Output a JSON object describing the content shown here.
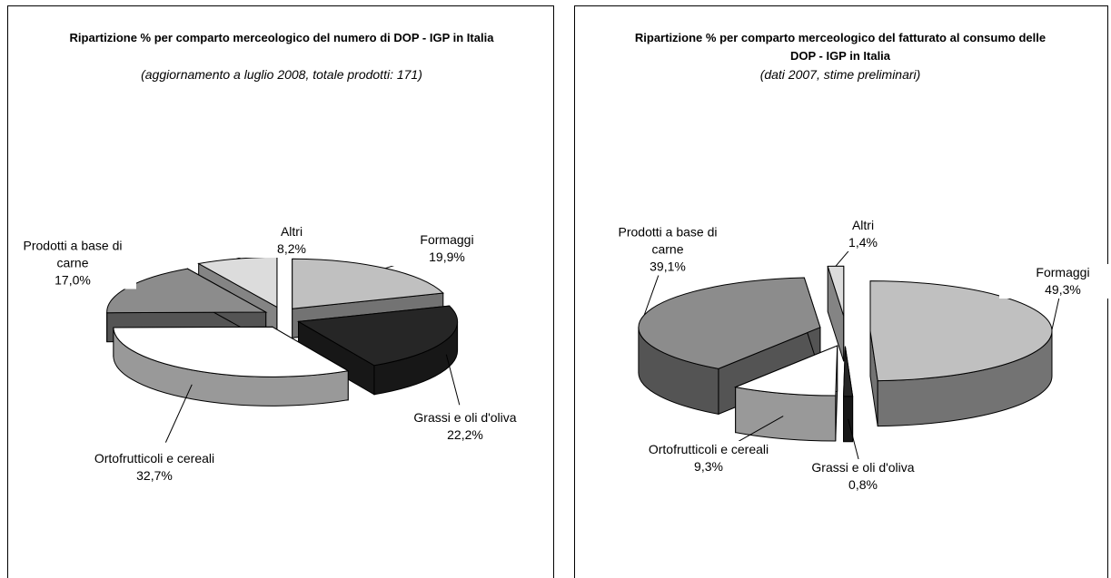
{
  "chart_data": [
    {
      "type": "pie",
      "title": "Ripartizione % per comparto merceologico del numero di DOP - IGP in Italia",
      "subtitle": "(aggiornamento a luglio 2008, totale prodotti: 171)",
      "categories": [
        "Formaggi",
        "Grassi e oli d'oliva",
        "Ortofrutticoli e cereali",
        "Prodotti a base di carne",
        "Altri"
      ],
      "values": [
        19.9,
        22.2,
        32.7,
        17.0,
        8.2
      ],
      "value_labels": [
        "19,9%",
        "22,2%",
        "32,7%",
        "17,0%",
        "8,2%"
      ],
      "colors": [
        "#c0c0c0",
        "#262626",
        "#ffffff",
        "#8c8c8c",
        "#dcdcdc"
      ]
    },
    {
      "type": "pie",
      "title": "Ripartizione % per comparto merceologico del fatturato al consumo delle DOP - IGP in Italia",
      "subtitle": "(dati 2007, stime preliminari)",
      "categories": [
        "Formaggi",
        "Grassi e oli d'oliva",
        "Ortofrutticoli e cereali",
        "Prodotti a base di carne",
        "Altri"
      ],
      "values": [
        49.3,
        0.8,
        9.3,
        39.1,
        1.4
      ],
      "value_labels": [
        "49,3%",
        "0,8%",
        "9,3%",
        "39,1%",
        "1,4%"
      ],
      "colors": [
        "#c0c0c0",
        "#262626",
        "#ffffff",
        "#8c8c8c",
        "#dcdcdc"
      ]
    }
  ]
}
